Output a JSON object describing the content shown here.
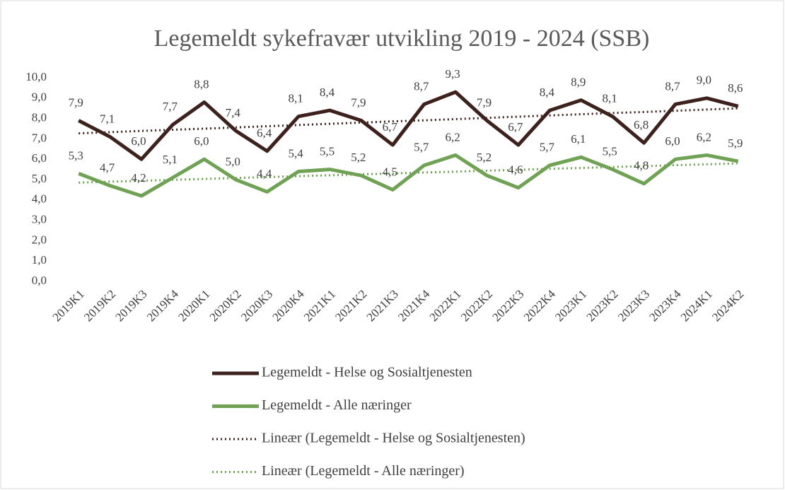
{
  "chart_data": {
    "type": "line",
    "title": "Legemeldt sykefravær utvikling 2019 - 2024 (SSB)",
    "categories": [
      "2019K1",
      "2019K2",
      "2019K3",
      "2019K4",
      "2020K1",
      "2020K2",
      "2020K3",
      "2020K4",
      "2021K1",
      "2021K2",
      "2021K3",
      "2021K4",
      "2022K1",
      "2022K2",
      "2022K3",
      "2022K4",
      "2023K1",
      "2023K2",
      "2023K3",
      "2023K4",
      "2024K1",
      "2024K2"
    ],
    "series": [
      {
        "name": "Legemeldt - Helse og Sosialtjenesten",
        "color": "#3d211d",
        "style": "solid",
        "values": [
          7.9,
          7.1,
          6.0,
          7.7,
          8.8,
          7.4,
          6.4,
          8.1,
          8.4,
          7.9,
          6.7,
          8.7,
          9.3,
          7.9,
          6.7,
          8.4,
          8.9,
          8.1,
          6.8,
          8.7,
          9.0,
          8.6
        ],
        "value_labels": [
          "7,9",
          "7,1",
          "6,0",
          "7,7",
          "8,8",
          "7,4",
          "6,4",
          "8,1",
          "8,4",
          "7,9",
          "6,7",
          "8,7",
          "9,3",
          "7,9",
          "6,7",
          "8,4",
          "8,9",
          "8,1",
          "6,8",
          "8,7",
          "9,0",
          "8,6"
        ]
      },
      {
        "name": "Legemeldt - Alle næringer",
        "color": "#70a255",
        "style": "solid",
        "values": [
          5.3,
          4.7,
          4.2,
          5.1,
          6.0,
          5.0,
          4.4,
          5.4,
          5.5,
          5.2,
          4.5,
          5.7,
          6.2,
          5.2,
          4.6,
          5.7,
          6.1,
          5.5,
          4.8,
          6.0,
          6.2,
          5.9
        ],
        "value_labels": [
          "5,3",
          "4,7",
          "4,2",
          "5,1",
          "6,0",
          "5,0",
          "4,4",
          "5,4",
          "5,5",
          "5,2",
          "4,5",
          "5,7",
          "6,2",
          "5,2",
          "4,6",
          "5,7",
          "6,1",
          "5,5",
          "4,8",
          "6,0",
          "6,2",
          "5,9"
        ]
      },
      {
        "name": "Lineær (Legemeldt - Helse og Sosialtjenesten)",
        "color": "#3d211d",
        "style": "dotted",
        "values": [
          7.27,
          7.33,
          7.39,
          7.45,
          7.5,
          7.56,
          7.62,
          7.68,
          7.74,
          7.8,
          7.86,
          7.91,
          7.97,
          8.03,
          8.09,
          8.15,
          8.21,
          8.27,
          8.32,
          8.38,
          8.44,
          8.5
        ]
      },
      {
        "name": "Lineær (Legemeldt - Alle næringer)",
        "color": "#70a255",
        "style": "dotted",
        "values": [
          4.85,
          4.9,
          4.94,
          4.99,
          5.03,
          5.08,
          5.12,
          5.17,
          5.21,
          5.26,
          5.3,
          5.35,
          5.39,
          5.44,
          5.48,
          5.53,
          5.57,
          5.62,
          5.66,
          5.71,
          5.75,
          5.8
        ]
      }
    ],
    "ylim": [
      0,
      10
    ],
    "yticks": [
      {
        "value": 0,
        "label": "0,0"
      },
      {
        "value": 1,
        "label": "1,0"
      },
      {
        "value": 2,
        "label": "2,0"
      },
      {
        "value": 3,
        "label": "3,0"
      },
      {
        "value": 4,
        "label": "4,0"
      },
      {
        "value": 5,
        "label": "5,0"
      },
      {
        "value": 6,
        "label": "6,0"
      },
      {
        "value": 7,
        "label": "7,0"
      },
      {
        "value": 8,
        "label": "8,0"
      },
      {
        "value": 9,
        "label": "9,0"
      },
      {
        "value": 10,
        "label": "10,0"
      }
    ],
    "grid": false
  }
}
